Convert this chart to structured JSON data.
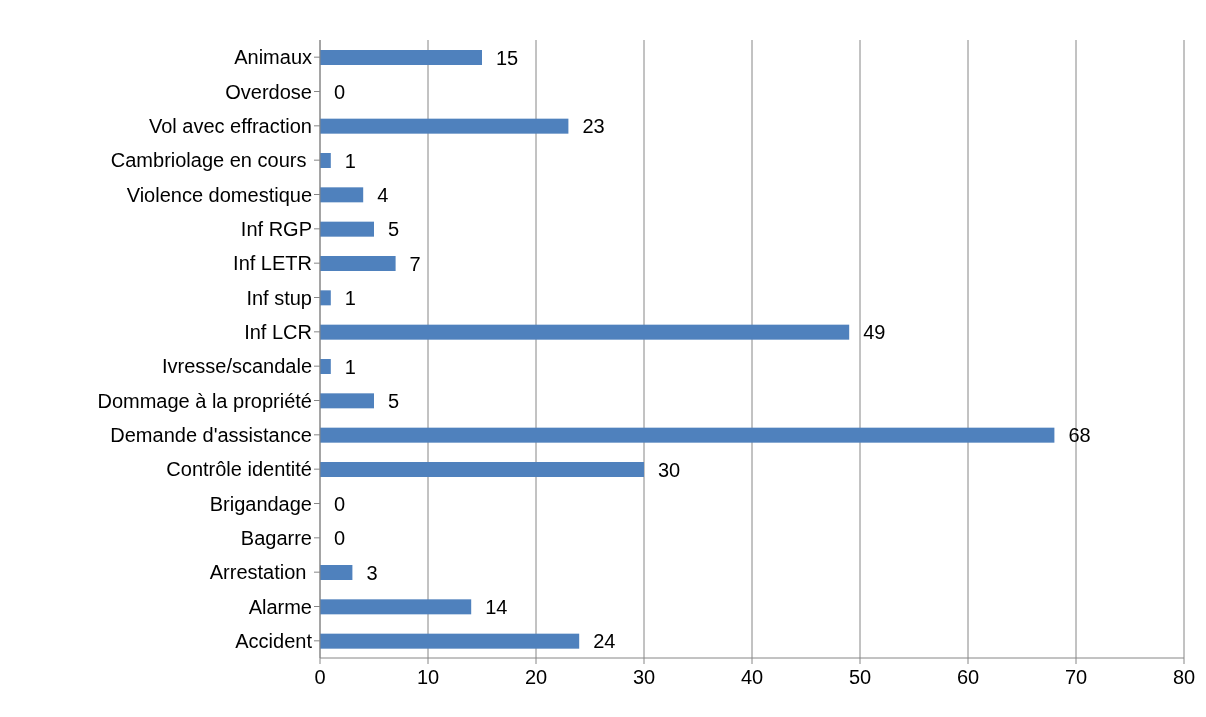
{
  "chart_data": {
    "type": "bar",
    "orientation": "horizontal",
    "categories": [
      "Animaux",
      "Overdose",
      "Vol avec effraction",
      "Cambriolage en cours ",
      "Violence domestique",
      "Inf RGP",
      "Inf LETR",
      "Inf stup",
      "Inf LCR",
      "Ivresse/scandale",
      "Dommage à la propriété",
      "Demande  d'assistance",
      "Contrôle  identité",
      "Brigandage",
      "Bagarre",
      "Arrestation ",
      "Alarme",
      "Accident"
    ],
    "values": [
      15,
      0,
      23,
      1,
      4,
      5,
      7,
      1,
      49,
      1,
      5,
      68,
      30,
      0,
      0,
      3,
      14,
      24
    ],
    "color": "#4f81bd",
    "xlim": [
      0,
      80
    ],
    "xticks": [
      0,
      10,
      20,
      30,
      40,
      50,
      60,
      70,
      80
    ],
    "grid": "x",
    "data_labels": true
  }
}
